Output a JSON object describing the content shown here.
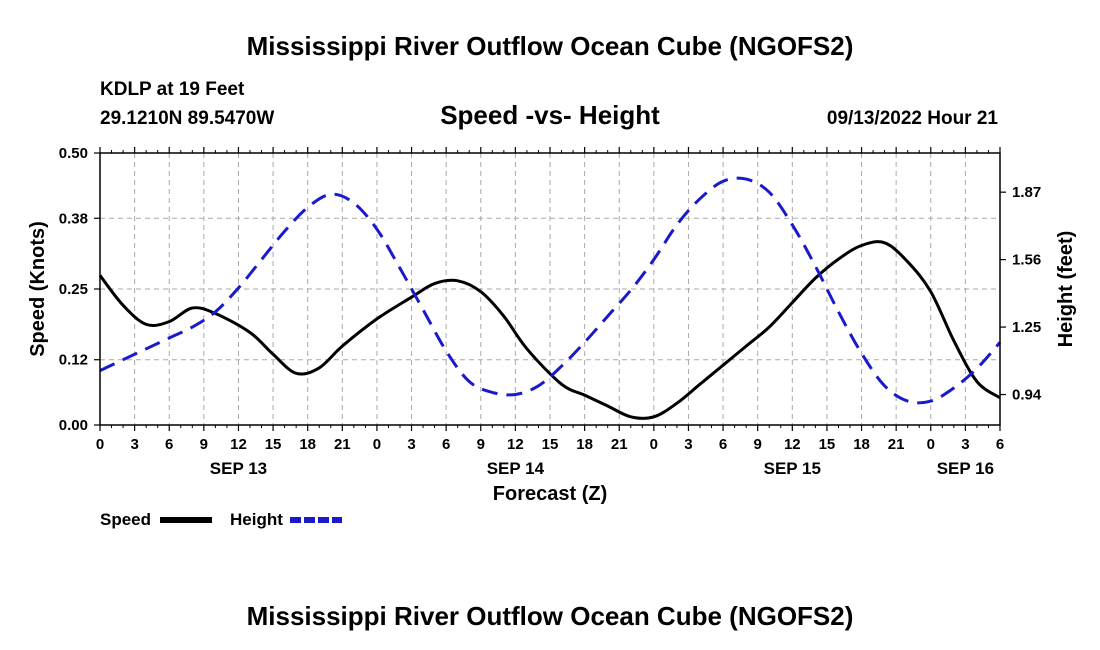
{
  "chart_data": {
    "type": "line",
    "title": "Mississippi River Outflow Ocean Cube (NGOFS2)",
    "title_repeat": "Mississippi River Outflow Ocean Cube (NGOFS2)",
    "subtitle": "Speed -vs- Height",
    "station": "KDLP at 19 Feet",
    "location": "29.1210N  89.5470W",
    "timestamp": "09/13/2022 Hour 21",
    "xlabel": "Forecast (Z)",
    "ylabel_left": "Speed (Knots)",
    "ylabel_right": "Height (feet)",
    "x_range_hours": [
      0,
      78
    ],
    "x_ticks": [
      "0",
      "3",
      "6",
      "9",
      "12",
      "15",
      "18",
      "21",
      "0",
      "3",
      "6",
      "9",
      "12",
      "15",
      "18",
      "21",
      "0",
      "3",
      "6",
      "9",
      "12",
      "15",
      "18",
      "21",
      "0",
      "3",
      "6"
    ],
    "date_labels": [
      {
        "label": "SEP 13",
        "hour": 12
      },
      {
        "label": "SEP 14",
        "hour": 36
      },
      {
        "label": "SEP 15",
        "hour": 60
      },
      {
        "label": "SEP 16",
        "hour": 75
      }
    ],
    "y_left_ticks": [
      "0.00",
      "0.12",
      "0.25",
      "0.38",
      "0.50"
    ],
    "ylim_left": [
      0,
      0.5
    ],
    "y_right_ticks": [
      "0.94",
      "1.25",
      "1.56",
      "1.87"
    ],
    "ylim_right": [
      0.8,
      2.05
    ],
    "grid": true,
    "series": [
      {
        "name": "Speed",
        "axis": "left",
        "color": "#000000",
        "style": "solid",
        "x": [
          0,
          2,
          4,
          6,
          8,
          10,
          13,
          15,
          17,
          19,
          21,
          24,
          27,
          29,
          31,
          33,
          35,
          37,
          40,
          42,
          44,
          46,
          48,
          50,
          52,
          54,
          56,
          58,
          60,
          62,
          64,
          66,
          68,
          70,
          72,
          74,
          76,
          78
        ],
        "values": [
          0.275,
          0.22,
          0.185,
          0.19,
          0.215,
          0.205,
          0.17,
          0.13,
          0.095,
          0.105,
          0.145,
          0.195,
          0.235,
          0.26,
          0.265,
          0.245,
          0.2,
          0.14,
          0.075,
          0.055,
          0.035,
          0.015,
          0.015,
          0.04,
          0.075,
          0.11,
          0.145,
          0.18,
          0.225,
          0.27,
          0.305,
          0.33,
          0.335,
          0.3,
          0.245,
          0.155,
          0.08,
          0.05
        ]
      },
      {
        "name": "Height",
        "axis": "right",
        "color": "#1a1acc",
        "style": "dashed",
        "x": [
          0,
          2,
          4,
          6,
          8,
          10,
          12,
          14,
          16,
          18,
          20,
          22,
          24,
          26,
          28,
          30,
          32,
          34,
          36,
          38,
          40,
          42,
          44,
          46,
          48,
          50,
          52,
          54,
          56,
          58,
          60,
          62,
          64,
          66,
          68,
          70,
          72,
          74,
          76,
          78
        ],
        "values": [
          1.05,
          1.1,
          1.15,
          1.2,
          1.25,
          1.32,
          1.43,
          1.56,
          1.69,
          1.8,
          1.86,
          1.82,
          1.7,
          1.52,
          1.33,
          1.14,
          1.0,
          0.95,
          0.94,
          0.98,
          1.07,
          1.18,
          1.3,
          1.42,
          1.56,
          1.72,
          1.84,
          1.92,
          1.93,
          1.87,
          1.72,
          1.53,
          1.32,
          1.13,
          0.98,
          0.91,
          0.91,
          0.97,
          1.06,
          1.18
        ]
      }
    ]
  }
}
